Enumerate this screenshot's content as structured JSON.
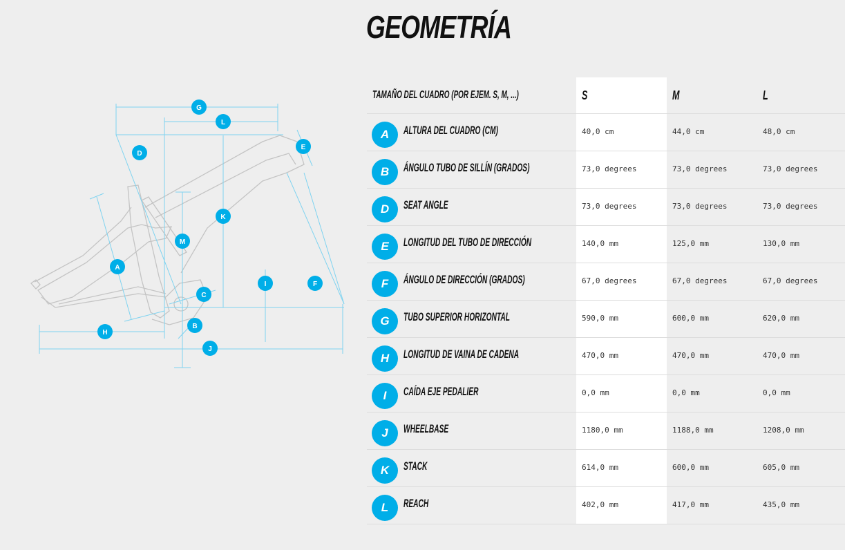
{
  "title": "GEOMETRÍA",
  "diagram": {
    "markers": [
      "G",
      "L",
      "D",
      "E",
      "K",
      "M",
      "A",
      "I",
      "F",
      "C",
      "B",
      "H",
      "J"
    ]
  },
  "table": {
    "header": {
      "label": "TAMAÑO DEL CUADRO (POR EJEM. S, M, ...)",
      "sizes": [
        "S",
        "M",
        "L"
      ]
    },
    "rows": [
      {
        "letter": "A",
        "label": "ALTURA DEL CUADRO (CM)",
        "values": [
          "40,0 cm",
          "44,0 cm",
          "48,0 cm"
        ]
      },
      {
        "letter": "B",
        "label": "ÁNGULO TUBO DE SILLÍN (GRADOS)",
        "values": [
          "73,0 degrees",
          "73,0 degrees",
          "73,0 degrees"
        ]
      },
      {
        "letter": "D",
        "label": "SEAT ANGLE",
        "values": [
          "73,0 degrees",
          "73,0 degrees",
          "73,0 degrees"
        ]
      },
      {
        "letter": "E",
        "label": "LONGITUD DEL TUBO DE DIRECCIÓN",
        "values": [
          "140,0 mm",
          "125,0 mm",
          "130,0 mm"
        ]
      },
      {
        "letter": "F",
        "label": "ÁNGULO DE DIRECCIÓN (GRADOS)",
        "values": [
          "67,0 degrees",
          "67,0 degrees",
          "67,0 degrees"
        ]
      },
      {
        "letter": "G",
        "label": "TUBO SUPERIOR HORIZONTAL",
        "values": [
          "590,0 mm",
          "600,0 mm",
          "620,0 mm"
        ]
      },
      {
        "letter": "H",
        "label": "LONGITUD DE VAINA DE CADENA",
        "values": [
          "470,0 mm",
          "470,0 mm",
          "470,0 mm"
        ]
      },
      {
        "letter": "I",
        "label": "CAÍDA EJE PEDALIER",
        "values": [
          "0,0 mm",
          "0,0 mm",
          "0,0 mm"
        ]
      },
      {
        "letter": "J",
        "label": "WHEELBASE",
        "values": [
          "1180,0 mm",
          "1188,0 mm",
          "1208,0 mm"
        ]
      },
      {
        "letter": "K",
        "label": "STACK",
        "values": [
          "614,0 mm",
          "600,0 mm",
          "605,0 mm"
        ]
      },
      {
        "letter": "L",
        "label": "REACH",
        "values": [
          "402,0 mm",
          "417,0 mm",
          "435,0 mm"
        ]
      }
    ]
  },
  "colors": {
    "accent": "#00aee8",
    "frame_line": "#bdbdbd",
    "measure_line": "#7fd3f0"
  }
}
